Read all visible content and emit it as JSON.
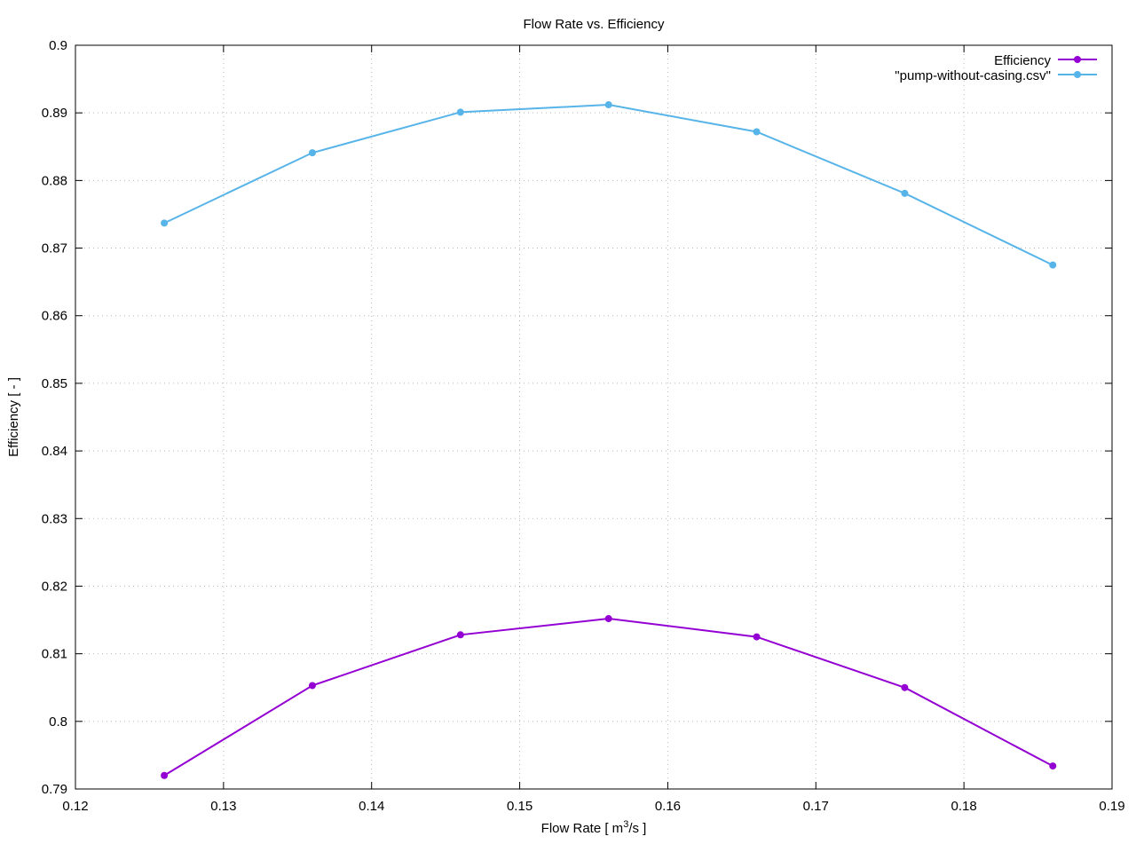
{
  "chart_data": {
    "type": "line",
    "title": "Flow Rate  vs. Efficiency",
    "xlabel": {
      "pre": "Flow Rate [ m",
      "sup": "3",
      "post": "/s ]"
    },
    "ylabel": "Efficiency [ - ]",
    "xlim": [
      0.12,
      0.19
    ],
    "ylim": [
      0.79,
      0.9
    ],
    "xticks": [
      0.12,
      0.13,
      0.14,
      0.15,
      0.16,
      0.17,
      0.18,
      0.19
    ],
    "xtick_labels": [
      "0.12",
      "0.13",
      "0.14",
      "0.15",
      "0.16",
      "0.17",
      "0.18",
      "0.19"
    ],
    "yticks": [
      0.79,
      0.8,
      0.81,
      0.82,
      0.83,
      0.84,
      0.85,
      0.86,
      0.87,
      0.88,
      0.89,
      0.9
    ],
    "ytick_labels": [
      "0.79",
      "0.8",
      "0.81",
      "0.82",
      "0.83",
      "0.84",
      "0.85",
      "0.86",
      "0.87",
      "0.88",
      "0.89",
      "0.9"
    ],
    "grid": true,
    "legend_position": "top-right",
    "series": [
      {
        "name": "Efficiency",
        "color": "#9400d3",
        "x": [
          0.126,
          0.136,
          0.146,
          0.156,
          0.166,
          0.176,
          0.186
        ],
        "y": [
          0.792,
          0.8053,
          0.8128,
          0.8152,
          0.8125,
          0.805,
          0.7934
        ]
      },
      {
        "name": "\"pump-without-casing.csv\"",
        "color": "#56b4e9",
        "x": [
          0.126,
          0.136,
          0.146,
          0.156,
          0.166,
          0.176,
          0.186
        ],
        "y": [
          0.8737,
          0.8841,
          0.8901,
          0.8912,
          0.8872,
          0.8781,
          0.8675
        ]
      }
    ]
  }
}
